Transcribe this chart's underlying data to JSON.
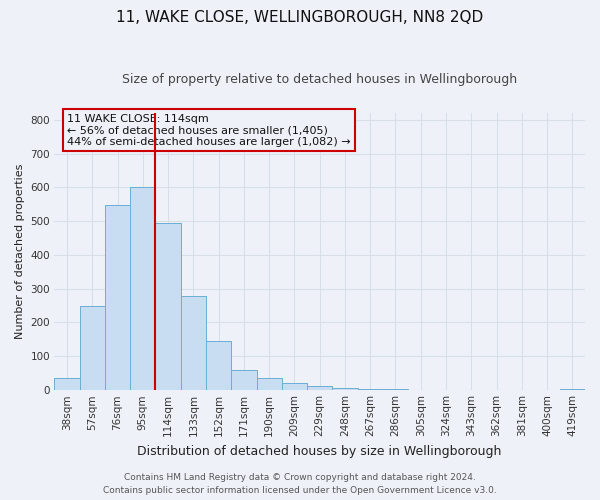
{
  "title": "11, WAKE CLOSE, WELLINGBOROUGH, NN8 2QD",
  "subtitle": "Size of property relative to detached houses in Wellingborough",
  "xlabel": "Distribution of detached houses by size in Wellingborough",
  "ylabel": "Number of detached properties",
  "bin_labels": [
    "38sqm",
    "57sqm",
    "76sqm",
    "95sqm",
    "114sqm",
    "133sqm",
    "152sqm",
    "171sqm",
    "190sqm",
    "209sqm",
    "229sqm",
    "248sqm",
    "267sqm",
    "286sqm",
    "305sqm",
    "324sqm",
    "343sqm",
    "362sqm",
    "381sqm",
    "400sqm",
    "419sqm"
  ],
  "bar_values": [
    35,
    248,
    547,
    601,
    493,
    278,
    145,
    60,
    35,
    20,
    12,
    5,
    3,
    2,
    1,
    1,
    1,
    0,
    0,
    0,
    4
  ],
  "bar_color": "#c9ddf2",
  "bar_edge_color": "#6baed6",
  "vline_color": "#cc0000",
  "annotation_title": "11 WAKE CLOSE: 114sqm",
  "annotation_line1": "← 56% of detached houses are smaller (1,405)",
  "annotation_line2": "44% of semi-detached houses are larger (1,082) →",
  "annotation_box_edge_color": "#cc0000",
  "ylim": [
    0,
    820
  ],
  "yticks": [
    0,
    100,
    200,
    300,
    400,
    500,
    600,
    700,
    800
  ],
  "footer1": "Contains HM Land Registry data © Crown copyright and database right 2024.",
  "footer2": "Contains public sector information licensed under the Open Government Licence v3.0.",
  "background_color": "#eef2f8",
  "grid_color": "#d8dfe8",
  "title_fontsize": 11,
  "subtitle_fontsize": 9,
  "xlabel_fontsize": 9,
  "ylabel_fontsize": 8,
  "tick_fontsize": 7.5,
  "annot_fontsize": 8,
  "footer_fontsize": 6.5
}
